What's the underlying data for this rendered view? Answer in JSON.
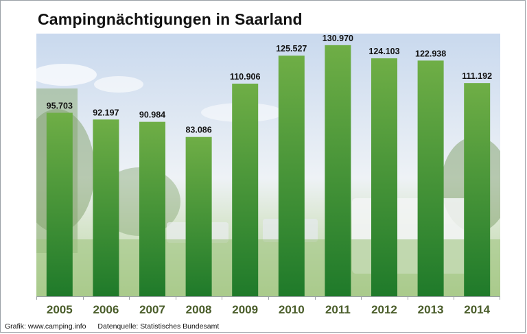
{
  "title": "Campingnächtigungen in Saarland",
  "footer": {
    "credit": "Grafik: www.camping.info",
    "source": "Datenquelle:  Statistisches Bundesamt"
  },
  "colors": {
    "bar_top": "#6fae46",
    "bar_bottom": "#1f7a2a",
    "tick_label": "#4a5d2a",
    "value_label": "#111111"
  },
  "chart_data": {
    "type": "bar",
    "title": "Campingnächtigungen in Saarland",
    "xlabel": "",
    "ylabel": "",
    "categories": [
      "2005",
      "2006",
      "2007",
      "2008",
      "2009",
      "2010",
      "2011",
      "2012",
      "2013",
      "2014"
    ],
    "values": [
      95703,
      92197,
      90984,
      83086,
      110906,
      125527,
      130970,
      124103,
      122938,
      111192
    ],
    "value_labels": [
      "95.703",
      "92.197",
      "90.984",
      "83.086",
      "110.906",
      "125.527",
      "130.970",
      "124.103",
      "122.938",
      "111.192"
    ],
    "ylim": [
      0,
      137000
    ],
    "grid": false,
    "legend": "none"
  }
}
